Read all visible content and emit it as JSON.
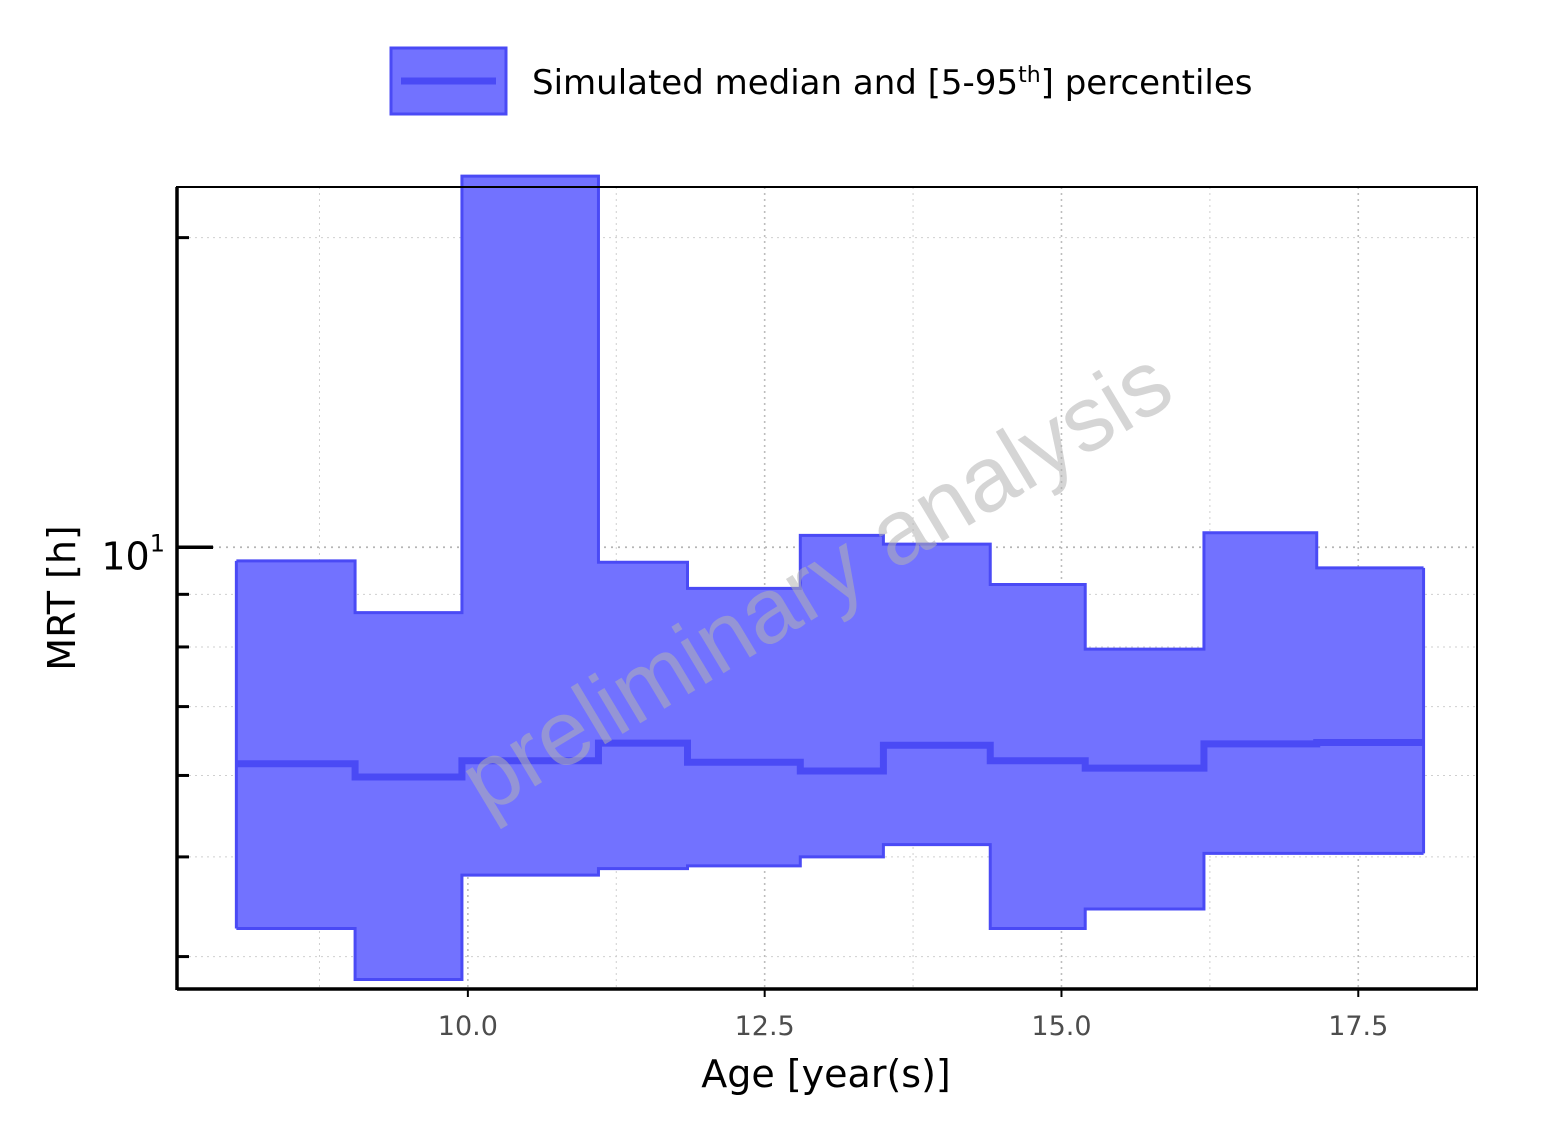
{
  "legend": {
    "label_main": "Simulated median and [5-95",
    "label_sup": "th",
    "label_end": "] percentiles"
  },
  "watermark": "preliminary analysis",
  "colors": {
    "band_fill": "#7272ff",
    "band_stroke": "#4a4af5",
    "median": "#4a4af5",
    "grid": "#cfcfcf",
    "axis": "#000000"
  },
  "chart_data": {
    "type": "area",
    "title": "",
    "xlabel": "Age [year(s)]",
    "ylabel": "MRT [h]",
    "yscale": "log",
    "xlim": [
      7.55,
      18.5
    ],
    "ylim": [
      3.72,
      22.4
    ],
    "x_ticks": [
      10.0,
      12.5,
      15.0,
      17.5
    ],
    "x_tick_labels": [
      "10.0",
      "12.5",
      "15.0",
      "17.5"
    ],
    "y_major_ticks": [
      10
    ],
    "y_major_tick_base": "10",
    "y_major_tick_exp": "1",
    "y_minor_ticks": [
      4,
      5,
      6,
      7,
      8,
      9,
      20
    ],
    "grid": true,
    "legend_position": "top",
    "step_edges": [
      8.05,
      9.05,
      9.95,
      11.1,
      11.85,
      12.8,
      13.5,
      14.4,
      15.2,
      16.2,
      17.15,
      18.05
    ],
    "series": [
      {
        "name": "Simulated median and [5-95th] percentiles",
        "median": [
          6.16,
          5.98,
          6.2,
          6.45,
          6.18,
          6.06,
          6.42,
          6.2,
          6.1,
          6.44,
          6.46
        ],
        "p95": [
          9.7,
          8.64,
          22.95,
          9.67,
          9.12,
          10.27,
          10.07,
          9.2,
          7.96,
          10.33,
          9.55
        ],
        "p5": [
          4.26,
          3.8,
          4.8,
          4.87,
          4.9,
          5.0,
          5.14,
          4.26,
          4.45,
          5.04,
          5.04
        ]
      }
    ]
  }
}
